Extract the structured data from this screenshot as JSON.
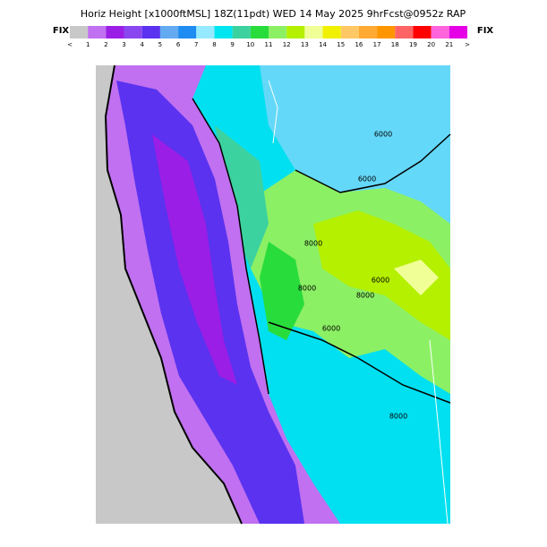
{
  "header": {
    "title": "Horiz Height [x1000ftMSL] 18Z(11pdt) WED 14 May 2025 9hrFcst@0952z RAP",
    "left_label": "FIX",
    "right_label": "FIX"
  },
  "colorbar": {
    "labels": [
      "<",
      "1",
      "2",
      "3",
      "4",
      "5",
      "6",
      "7",
      "8",
      "9",
      "10",
      "11",
      "12",
      "13",
      "14",
      "15",
      "16",
      "17",
      "18",
      "19",
      "20",
      "21",
      ">"
    ],
    "colors": [
      "#c8c8c8",
      "#c070f0",
      "#9a1ee6",
      "#8a46f0",
      "#5a32f0",
      "#64aaf0",
      "#1e8cf0",
      "#96eaff",
      "#00e6f0",
      "#3cd2a0",
      "#28dc3c",
      "#8cf064",
      "#b4f000",
      "#f0ff96",
      "#f0f000",
      "#ffc864",
      "#ffaa32",
      "#ff9600",
      "#ff6464",
      "#ff0000",
      "#ff64dc",
      "#e600e6"
    ]
  },
  "map": {
    "contour_labels": [
      "6000",
      "6000",
      "8000",
      "6000",
      "8000",
      "8000",
      "6000",
      "8000"
    ]
  }
}
